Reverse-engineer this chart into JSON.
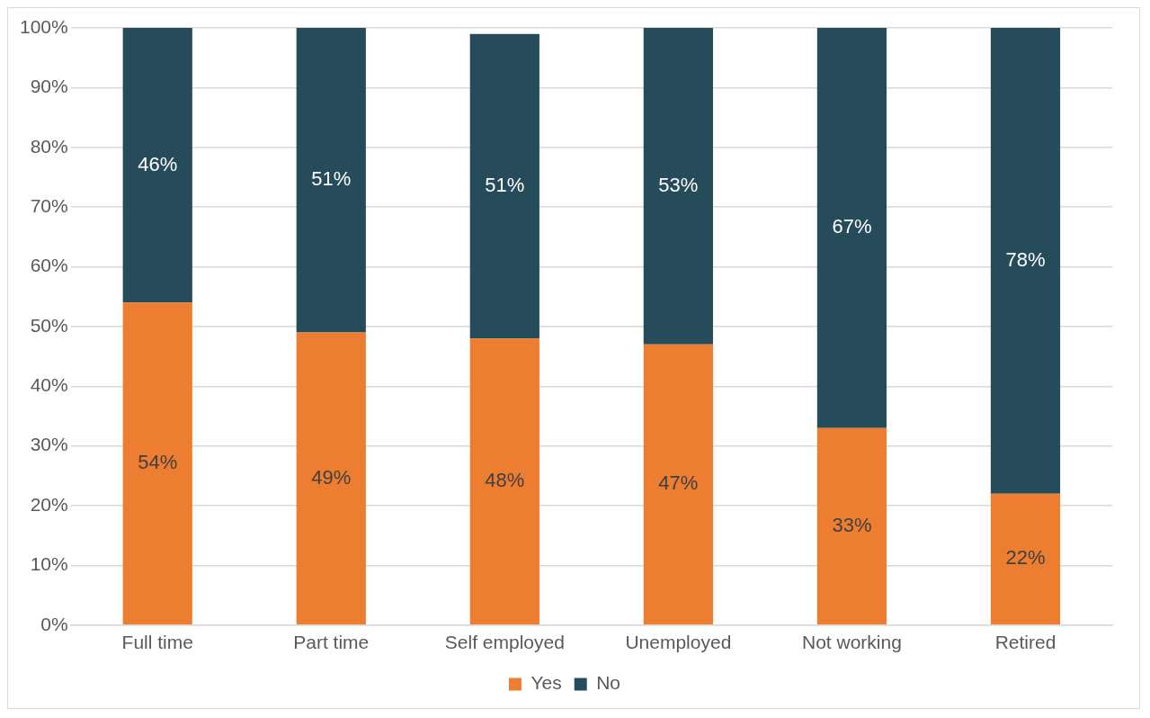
{
  "chart_data": {
    "type": "bar",
    "stacked": true,
    "categories": [
      "Full time",
      "Part time",
      "Self employed",
      "Unemployed",
      "Not working",
      "Retired"
    ],
    "series": [
      {
        "name": "Yes",
        "color": "#ed7d31",
        "values": [
          54,
          49,
          48,
          47,
          33,
          22
        ],
        "value_labels": [
          "54%",
          "49%",
          "48%",
          "47%",
          "33%",
          "22%"
        ]
      },
      {
        "name": "No",
        "color": "#264b5a",
        "values": [
          46,
          51,
          51,
          53,
          67,
          78
        ],
        "value_labels": [
          "46%",
          "51%",
          "51%",
          "53%",
          "67%",
          "78%"
        ]
      }
    ],
    "ylim": [
      0,
      100
    ],
    "yticks": [
      {
        "value": 0,
        "label": "0%"
      },
      {
        "value": 10,
        "label": "10%"
      },
      {
        "value": 20,
        "label": "20%"
      },
      {
        "value": 30,
        "label": "30%"
      },
      {
        "value": 40,
        "label": "40%"
      },
      {
        "value": 50,
        "label": "50%"
      },
      {
        "value": 60,
        "label": "60%"
      },
      {
        "value": 70,
        "label": "70%"
      },
      {
        "value": 80,
        "label": "80%"
      },
      {
        "value": 90,
        "label": "90%"
      },
      {
        "value": 100,
        "label": "100%"
      }
    ],
    "grid": "y",
    "legend": "bottom"
  }
}
